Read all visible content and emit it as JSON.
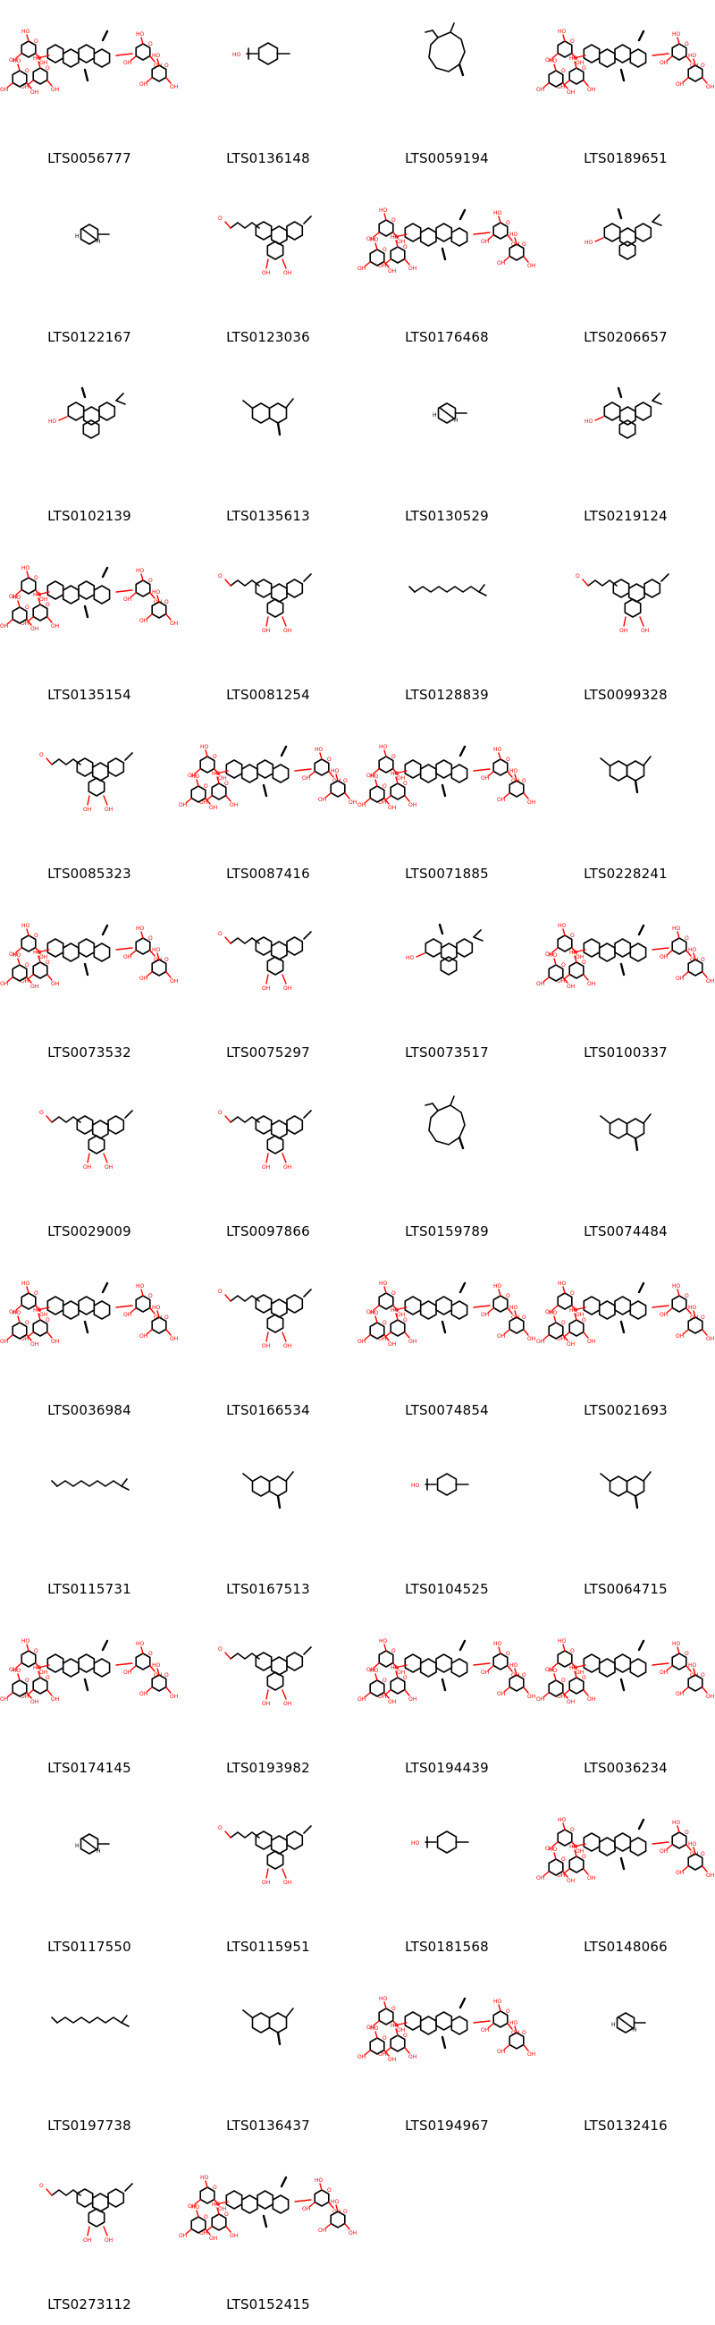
{
  "molecules": [
    {
      "id": "LTS0056777",
      "icon": "glycoside-large-molecule-icon",
      "shape": "glyco"
    },
    {
      "id": "LTS0136148",
      "icon": "small-ring-molecule-icon",
      "shape": "ring_chain"
    },
    {
      "id": "LTS0059194",
      "icon": "macrocycle-molecule-icon",
      "shape": "macro"
    },
    {
      "id": "LTS0189651",
      "icon": "glycoside-large-molecule-icon",
      "shape": "glyco"
    },
    {
      "id": "LTS0122167",
      "icon": "bicyclic-molecule-icon",
      "shape": "bicyclic_small"
    },
    {
      "id": "LTS0123036",
      "icon": "tetracyclic-chain-molecule-icon",
      "shape": "chain_polycyclic"
    },
    {
      "id": "LTS0176468",
      "icon": "glycoside-large-molecule-icon",
      "shape": "glyco"
    },
    {
      "id": "LTS0206657",
      "icon": "polycyclic-molecule-icon",
      "shape": "polycyclic"
    },
    {
      "id": "LTS0102139",
      "icon": "polycyclic-molecule-icon",
      "shape": "polycyclic"
    },
    {
      "id": "LTS0135613",
      "icon": "bicyclic-molecule-icon",
      "shape": "bicyclic"
    },
    {
      "id": "LTS0130529",
      "icon": "bicyclic-molecule-icon",
      "shape": "bicyclic_small"
    },
    {
      "id": "LTS0219124",
      "icon": "polycyclic-molecule-icon",
      "shape": "polycyclic"
    },
    {
      "id": "LTS0135154",
      "icon": "glycoside-large-molecule-icon",
      "shape": "glyco"
    },
    {
      "id": "LTS0081254",
      "icon": "polycyclic-molecule-icon",
      "shape": "chain_polycyclic"
    },
    {
      "id": "LTS0128839",
      "icon": "acyclic-chain-molecule-icon",
      "shape": "chain"
    },
    {
      "id": "LTS0099328",
      "icon": "polycyclic-molecule-icon",
      "shape": "chain_polycyclic"
    },
    {
      "id": "LTS0085323",
      "icon": "polycyclic-molecule-icon",
      "shape": "chain_polycyclic"
    },
    {
      "id": "LTS0087416",
      "icon": "glycoside-large-molecule-icon",
      "shape": "glyco"
    },
    {
      "id": "LTS0071885",
      "icon": "glycoside-large-molecule-icon",
      "shape": "glyco"
    },
    {
      "id": "LTS0228241",
      "icon": "bicyclic-molecule-icon",
      "shape": "bicyclic"
    },
    {
      "id": "LTS0073532",
      "icon": "glycoside-large-molecule-icon",
      "shape": "glyco"
    },
    {
      "id": "LTS0075297",
      "icon": "polycyclic-molecule-icon",
      "shape": "chain_polycyclic"
    },
    {
      "id": "LTS0073517",
      "icon": "polycyclic-molecule-icon",
      "shape": "polycyclic"
    },
    {
      "id": "LTS0100337",
      "icon": "glycoside-large-molecule-icon",
      "shape": "glyco"
    },
    {
      "id": "LTS0029009",
      "icon": "polycyclic-molecule-icon",
      "shape": "chain_polycyclic"
    },
    {
      "id": "LTS0097866",
      "icon": "polycyclic-molecule-icon",
      "shape": "chain_polycyclic"
    },
    {
      "id": "LTS0159789",
      "icon": "macrocycle-molecule-icon",
      "shape": "macro"
    },
    {
      "id": "LTS0074484",
      "icon": "bicyclic-molecule-icon",
      "shape": "bicyclic"
    },
    {
      "id": "LTS0036984",
      "icon": "glycoside-large-molecule-icon",
      "shape": "glyco"
    },
    {
      "id": "LTS0166534",
      "icon": "polycyclic-molecule-icon",
      "shape": "chain_polycyclic"
    },
    {
      "id": "LTS0074854",
      "icon": "glycoside-large-molecule-icon",
      "shape": "glyco"
    },
    {
      "id": "LTS0021693",
      "icon": "glycoside-large-molecule-icon",
      "shape": "glyco"
    },
    {
      "id": "LTS0115731",
      "icon": "acyclic-chain-molecule-icon",
      "shape": "chain"
    },
    {
      "id": "LTS0167513",
      "icon": "bicyclic-molecule-icon",
      "shape": "bicyclic"
    },
    {
      "id": "LTS0104525",
      "icon": "small-ring-molecule-icon",
      "shape": "ring_chain"
    },
    {
      "id": "LTS0064715",
      "icon": "bicyclic-molecule-icon",
      "shape": "bicyclic"
    },
    {
      "id": "LTS0174145",
      "icon": "glycoside-large-molecule-icon",
      "shape": "glyco"
    },
    {
      "id": "LTS0193982",
      "icon": "polycyclic-molecule-icon",
      "shape": "chain_polycyclic"
    },
    {
      "id": "LTS0194439",
      "icon": "glycoside-large-molecule-icon",
      "shape": "glyco"
    },
    {
      "id": "LTS0036234",
      "icon": "glycoside-large-molecule-icon",
      "shape": "glyco"
    },
    {
      "id": "LTS0117550",
      "icon": "bicyclic-molecule-icon",
      "shape": "bicyclic_small"
    },
    {
      "id": "LTS0115951",
      "icon": "polycyclic-molecule-icon",
      "shape": "chain_polycyclic"
    },
    {
      "id": "LTS0181568",
      "icon": "small-ring-molecule-icon",
      "shape": "ring_chain"
    },
    {
      "id": "LTS0148066",
      "icon": "glycoside-large-molecule-icon",
      "shape": "glyco"
    },
    {
      "id": "LTS0197738",
      "icon": "acyclic-chain-molecule-icon",
      "shape": "chain"
    },
    {
      "id": "LTS0136437",
      "icon": "bicyclic-molecule-icon",
      "shape": "bicyclic"
    },
    {
      "id": "LTS0194967",
      "icon": "glycoside-large-molecule-icon",
      "shape": "glyco"
    },
    {
      "id": "LTS0132416",
      "icon": "bicyclic-molecule-icon",
      "shape": "bicyclic_small"
    },
    {
      "id": "LTS0273112",
      "icon": "polycyclic-molecule-icon",
      "shape": "chain_polycyclic"
    },
    {
      "id": "LTS0152415",
      "icon": "glycoside-large-molecule-icon",
      "shape": "glyco"
    }
  ]
}
